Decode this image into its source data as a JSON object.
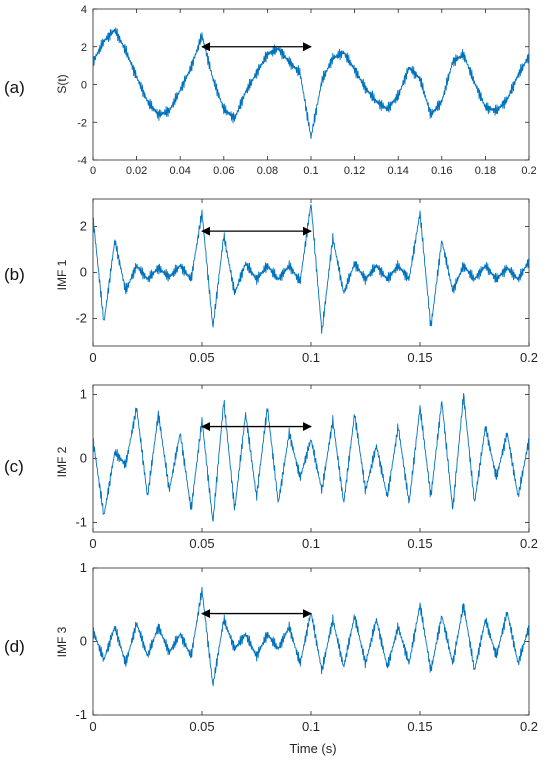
{
  "colors": {
    "signal": "#0072BD",
    "axes": "#262626",
    "arrow": "#000000",
    "background": "#ffffff"
  },
  "figure": {
    "xlabel": "Time  (s)"
  },
  "chart_data": [
    {
      "type": "line",
      "panel_label": "(a)",
      "ylabel": "S(t)",
      "xlim": [
        0,
        0.2
      ],
      "ylim": [
        -4,
        4
      ],
      "xticks": [
        0,
        0.02,
        0.04,
        0.06,
        0.08,
        0.1,
        0.12,
        0.14,
        0.16,
        0.18,
        0.2
      ],
      "xtick_labels": [
        "0",
        "0.02",
        "0.04",
        "0.06",
        "0.08",
        "0.1",
        "0.12",
        "0.14",
        "0.16",
        "0.18",
        "0.2"
      ],
      "yticks": [
        -4,
        -2,
        0,
        2,
        4
      ],
      "ytick_labels": [
        "-4",
        "-2",
        "0",
        "2",
        "4"
      ],
      "annotation": {
        "type": "double-arrow",
        "x": [
          0.05,
          0.1
        ],
        "y": 2
      },
      "series": [
        {
          "x": [
            0,
            0.005,
            0.01,
            0.015,
            0.02,
            0.025,
            0.03,
            0.035,
            0.04,
            0.045,
            0.05,
            0.055,
            0.06,
            0.065,
            0.07,
            0.075,
            0.08,
            0.085,
            0.09,
            0.095,
            0.1,
            0.105,
            0.11,
            0.115,
            0.12,
            0.125,
            0.13,
            0.135,
            0.14,
            0.145,
            0.15,
            0.155,
            0.16,
            0.165,
            0.17,
            0.175,
            0.18,
            0.185,
            0.19,
            0.195,
            0.2
          ],
          "y": [
            1.2,
            2.3,
            2.9,
            1.8,
            0.4,
            -0.9,
            -1.6,
            -1.4,
            -0.3,
            0.9,
            2.6,
            0.3,
            -1.3,
            -1.8,
            -0.4,
            0.6,
            1.6,
            1.9,
            1.2,
            0.6,
            -2.8,
            0.2,
            1.4,
            1.7,
            0.8,
            -0.2,
            -0.9,
            -1.3,
            -0.6,
            0.9,
            0.3,
            -1.6,
            -0.9,
            1.2,
            1.6,
            0.1,
            -1.2,
            -1.4,
            -0.8,
            0.5,
            1.5
          ]
        }
      ]
    },
    {
      "type": "line",
      "panel_label": "(b)",
      "ylabel": "IMF 1",
      "xlim": [
        0,
        0.2
      ],
      "ylim": [
        -3.2,
        3.2
      ],
      "xticks": [
        0,
        0.05,
        0.1,
        0.15,
        0.2
      ],
      "xtick_labels": [
        "0",
        "0.05",
        "0.1",
        "0.15",
        "0.2"
      ],
      "yticks": [
        -2,
        0,
        2
      ],
      "ytick_labels": [
        "-2",
        "0",
        "2"
      ],
      "annotation": {
        "type": "double-arrow",
        "x": [
          0.05,
          0.1
        ],
        "y": 1.8
      },
      "series": [
        {
          "x": [
            0,
            0.005,
            0.01,
            0.015,
            0.02,
            0.025,
            0.03,
            0.035,
            0.04,
            0.045,
            0.05,
            0.055,
            0.06,
            0.065,
            0.07,
            0.075,
            0.08,
            0.085,
            0.09,
            0.095,
            0.1,
            0.105,
            0.11,
            0.115,
            0.12,
            0.125,
            0.13,
            0.135,
            0.14,
            0.145,
            0.15,
            0.155,
            0.16,
            0.165,
            0.17,
            0.175,
            0.18,
            0.185,
            0.19,
            0.195,
            0.2
          ],
          "y": [
            2.4,
            -2.2,
            1.4,
            -0.8,
            0.3,
            -0.3,
            0.2,
            -0.2,
            0.3,
            -0.3,
            2.6,
            -2.4,
            1.6,
            -0.9,
            0.4,
            -0.3,
            0.3,
            -0.3,
            0.3,
            -0.4,
            3.0,
            -2.6,
            1.5,
            -0.9,
            0.4,
            -0.3,
            0.3,
            -0.3,
            0.3,
            -0.3,
            2.6,
            -2.4,
            1.4,
            -0.8,
            0.3,
            -0.3,
            0.3,
            -0.3,
            0.2,
            -0.3,
            0.5
          ]
        }
      ]
    },
    {
      "type": "line",
      "panel_label": "(c)",
      "ylabel": "IMF 2",
      "xlim": [
        0,
        0.2
      ],
      "ylim": [
        -1.15,
        1.15
      ],
      "xticks": [
        0,
        0.05,
        0.1,
        0.15,
        0.2
      ],
      "xtick_labels": [
        "0",
        "0.05",
        "0.1",
        "0.15",
        "0.2"
      ],
      "yticks": [
        -1,
        0,
        1
      ],
      "ytick_labels": [
        "-1",
        "0",
        "1"
      ],
      "annotation": {
        "type": "double-arrow",
        "x": [
          0.05,
          0.1
        ],
        "y": 0.5
      },
      "series": [
        {
          "x": [
            0,
            0.005,
            0.01,
            0.015,
            0.02,
            0.025,
            0.03,
            0.035,
            0.04,
            0.045,
            0.05,
            0.055,
            0.06,
            0.065,
            0.07,
            0.075,
            0.08,
            0.085,
            0.09,
            0.095,
            0.1,
            0.105,
            0.11,
            0.115,
            0.12,
            0.125,
            0.13,
            0.135,
            0.14,
            0.145,
            0.15,
            0.155,
            0.16,
            0.165,
            0.17,
            0.175,
            0.18,
            0.185,
            0.19,
            0.195,
            0.2
          ],
          "y": [
            0.3,
            -0.9,
            0.1,
            -0.1,
            0.8,
            -0.6,
            0.7,
            -0.5,
            0.4,
            -0.8,
            0.6,
            -1.0,
            0.9,
            -0.8,
            0.7,
            -0.6,
            0.8,
            -0.7,
            0.4,
            -0.3,
            0.3,
            -0.5,
            0.6,
            -0.7,
            0.7,
            -0.5,
            0.2,
            -0.6,
            0.5,
            -0.7,
            0.8,
            -0.6,
            0.9,
            -0.8,
            1.0,
            -0.7,
            0.5,
            -0.3,
            0.4,
            -0.6,
            0.3
          ]
        }
      ]
    },
    {
      "type": "line",
      "panel_label": "(d)",
      "ylabel": "IMF 3",
      "xlim": [
        0,
        0.2
      ],
      "ylim": [
        -1,
        1
      ],
      "xticks": [
        0,
        0.05,
        0.1,
        0.15,
        0.2
      ],
      "xtick_labels": [
        "0",
        "0.05",
        "0.1",
        "0.15",
        "0.2"
      ],
      "yticks": [
        -1,
        0,
        1
      ],
      "ytick_labels": [
        "-1",
        "0",
        "1"
      ],
      "annotation": {
        "type": "double-arrow",
        "x": [
          0.05,
          0.1
        ],
        "y": 0.38
      },
      "series": [
        {
          "x": [
            0,
            0.005,
            0.01,
            0.015,
            0.02,
            0.025,
            0.03,
            0.035,
            0.04,
            0.045,
            0.05,
            0.055,
            0.06,
            0.065,
            0.07,
            0.075,
            0.08,
            0.085,
            0.09,
            0.095,
            0.1,
            0.105,
            0.11,
            0.115,
            0.12,
            0.125,
            0.13,
            0.135,
            0.14,
            0.145,
            0.15,
            0.155,
            0.16,
            0.165,
            0.17,
            0.175,
            0.18,
            0.185,
            0.19,
            0.195,
            0.2
          ],
          "y": [
            0.15,
            -0.25,
            0.2,
            -0.3,
            0.25,
            -0.2,
            0.2,
            -0.15,
            0.1,
            -0.2,
            0.7,
            -0.6,
            0.3,
            -0.1,
            0.1,
            -0.2,
            0.1,
            -0.1,
            0.2,
            -0.3,
            0.4,
            -0.4,
            0.3,
            -0.35,
            0.35,
            -0.3,
            0.3,
            -0.35,
            0.2,
            -0.3,
            0.5,
            -0.4,
            0.35,
            -0.3,
            0.5,
            -0.4,
            0.3,
            -0.2,
            0.4,
            -0.3,
            0.2
          ]
        }
      ]
    }
  ]
}
